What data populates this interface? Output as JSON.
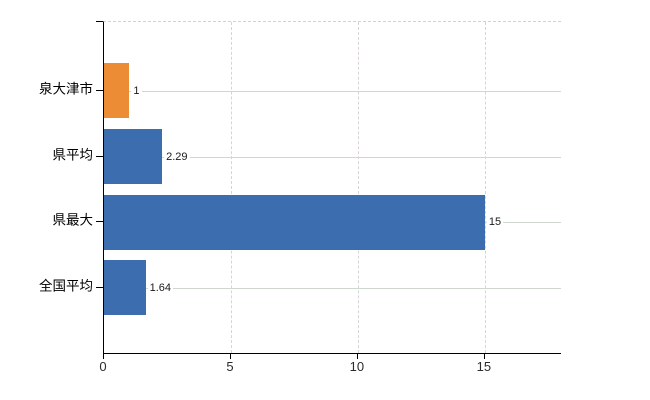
{
  "chart_data": {
    "type": "bar",
    "orientation": "horizontal",
    "title": "",
    "xlabel": "",
    "ylabel": "",
    "categories": [
      "泉大津市",
      "県平均",
      "県最大",
      "全国平均"
    ],
    "values": [
      1,
      2.29,
      15,
      1.64
    ],
    "value_labels": [
      "1",
      "2.29",
      "15",
      "1.64"
    ],
    "series": [
      {
        "name": "municipality-highlight",
        "color": "#EC8D35",
        "applies_to": [
          "泉大津市"
        ]
      },
      {
        "name": "reference-values",
        "color": "#3C6DAF",
        "applies_to": [
          "県平均",
          "県最大",
          "全国平均"
        ]
      }
    ],
    "bar_colors": [
      "#EC8D35",
      "#3C6DAF",
      "#3C6DAF",
      "#3C6DAF"
    ],
    "xlim": [
      0,
      18
    ],
    "x_ticks": [
      0,
      5,
      10,
      15
    ],
    "x_tick_labels": [
      "0",
      "5",
      "10",
      "15"
    ],
    "grid": "on",
    "legend": "none"
  },
  "colors": {
    "highlight_orange": "#EC8D35",
    "base_blue": "#3C6DAF",
    "axis_black": "#000000",
    "grid_horizontal": "#cfd8cf",
    "grid_vertical_dashed": "#d9d3d9",
    "background": "#ffffff"
  }
}
